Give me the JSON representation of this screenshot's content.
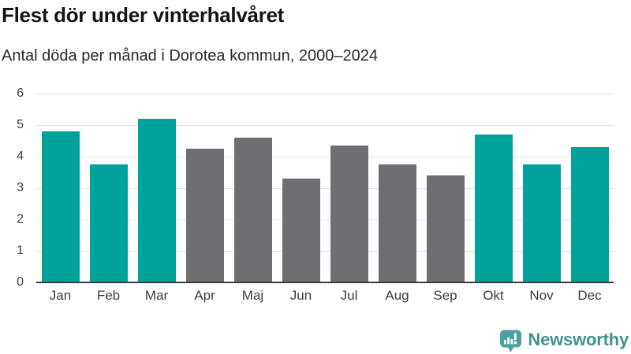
{
  "header": {
    "title": "Flest dör under vinterhalvåret",
    "subtitle": "Antal döda per månad i Dorotea kommun, 2000–2024"
  },
  "chart_data": {
    "type": "bar",
    "title": "Flest dör under vinterhalvåret",
    "subtitle": "Antal döda per månad i Dorotea kommun, 2000–2024",
    "categories": [
      "Jan",
      "Feb",
      "Mar",
      "Apr",
      "Maj",
      "Jun",
      "Jul",
      "Aug",
      "Sep",
      "Okt",
      "Nov",
      "Dec"
    ],
    "values": [
      4.8,
      3.75,
      5.2,
      4.25,
      4.6,
      3.3,
      4.35,
      3.75,
      3.4,
      4.7,
      3.75,
      4.3
    ],
    "bar_groups": [
      "winter",
      "winter",
      "winter",
      "summer",
      "summer",
      "summer",
      "summer",
      "summer",
      "summer",
      "winter",
      "winter",
      "winter"
    ],
    "colors": {
      "winter": "#00a29b",
      "summer": "#6e6e73"
    },
    "xlabel": "",
    "ylabel": "",
    "ylim": [
      0,
      6
    ],
    "yticks": [
      0,
      1,
      2,
      3,
      4,
      5,
      6
    ],
    "grid": true,
    "gridline_color": "#e2e2e2",
    "axis_color": "#3c3c3c",
    "tick_label_color": "#3d3d3d",
    "legend": "none"
  },
  "footer": {
    "brand": "Newsworthy",
    "brand_color": "#3e948e",
    "icon_color": "#4da09e",
    "icon": "bar-chart-speech-bubble-icon"
  }
}
